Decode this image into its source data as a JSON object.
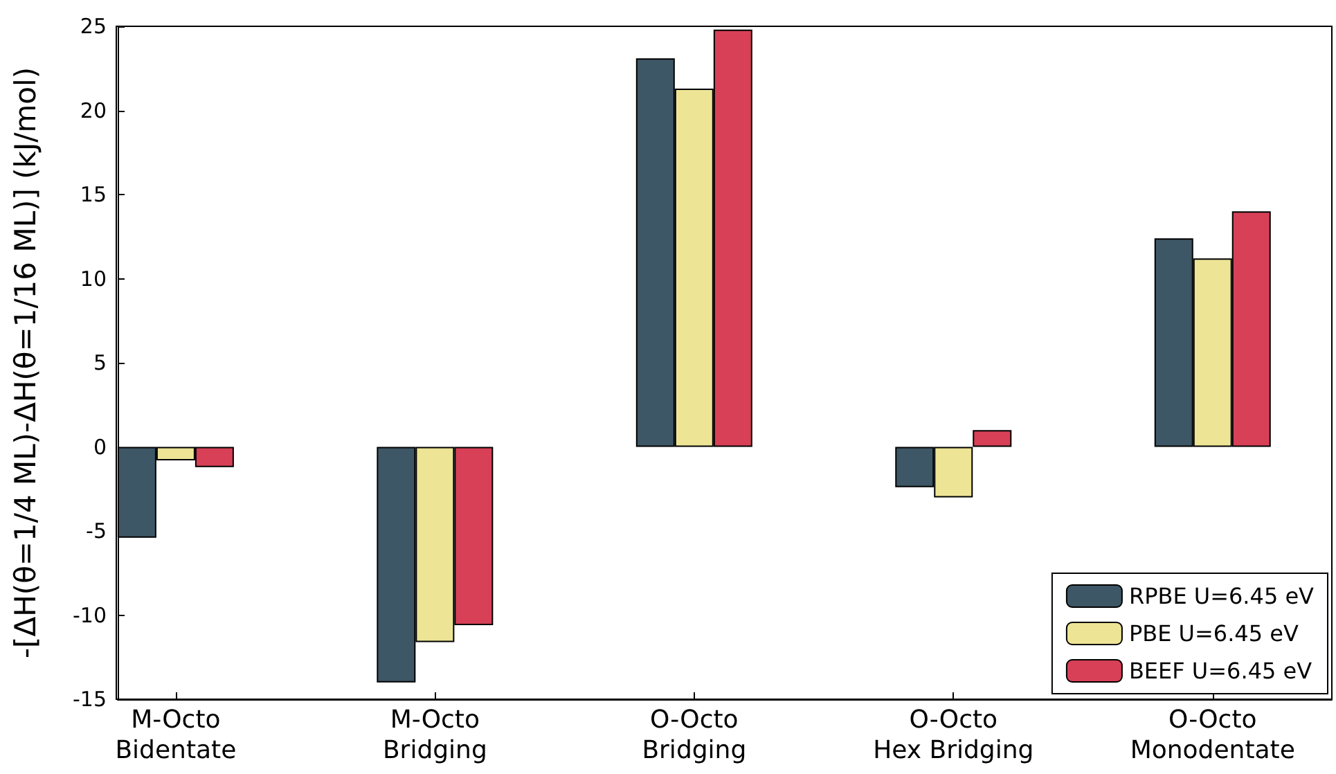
{
  "chart_data": {
    "type": "bar",
    "ylabel": "-[ΔH(θ=1/4 ML)-ΔH(θ=1/16 ML)] (kJ/mol)",
    "categories": [
      "M-Octo\nBidentate",
      "M-Octo\nBridging",
      "O-Octo\nBridging",
      "O-Octo\nHex Bridging",
      "O-Octo\nMonodentate"
    ],
    "series": [
      {
        "name": "RPBE U=6.45 eV",
        "color": "#3e5766",
        "values": [
          -5.4,
          -14.0,
          23.1,
          -2.4,
          12.4
        ]
      },
      {
        "name": "PBE U=6.45 eV",
        "color": "#ede496",
        "values": [
          -0.8,
          -11.6,
          21.3,
          -3.0,
          11.2
        ]
      },
      {
        "name": "BEEF U=6.45 eV",
        "color": "#d74057",
        "values": [
          -1.2,
          -10.6,
          24.8,
          1.0,
          14.0
        ]
      }
    ],
    "ylim": [
      -15,
      25
    ],
    "yticks": [
      -15,
      -10,
      -5,
      0,
      5,
      10,
      15,
      20,
      25
    ],
    "grid": false,
    "legend": "bottom right"
  }
}
